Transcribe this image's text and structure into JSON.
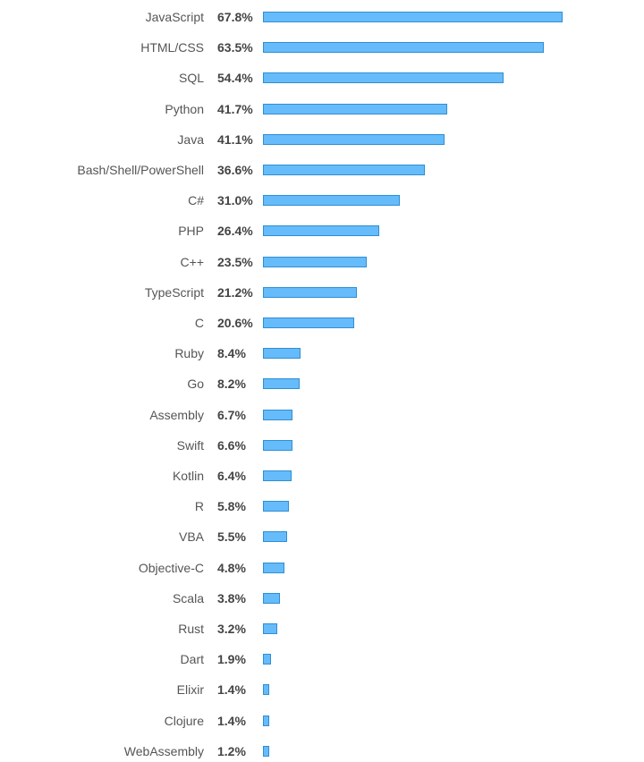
{
  "chart_data": {
    "type": "bar",
    "orientation": "horizontal",
    "title": "",
    "xlabel": "",
    "ylabel": "",
    "unit": "%",
    "grid": false,
    "bar_color": "#66bbfa",
    "bar_border_color": "#2f8fd3",
    "categories": [
      "JavaScript",
      "HTML/CSS",
      "SQL",
      "Python",
      "Java",
      "Bash/Shell/PowerShell",
      "C#",
      "PHP",
      "C++",
      "TypeScript",
      "C",
      "Ruby",
      "Go",
      "Assembly",
      "Swift",
      "Kotlin",
      "R",
      "VBA",
      "Objective-C",
      "Scala",
      "Rust",
      "Dart",
      "Elixir",
      "Clojure",
      "WebAssembly"
    ],
    "values": [
      67.8,
      63.5,
      54.4,
      41.7,
      41.1,
      36.6,
      31.0,
      26.4,
      23.5,
      21.2,
      20.6,
      8.4,
      8.2,
      6.7,
      6.6,
      6.4,
      5.8,
      5.5,
      4.8,
      3.8,
      3.2,
      1.9,
      1.4,
      1.4,
      1.2
    ],
    "value_labels": [
      "67.8%",
      "63.5%",
      "54.4%",
      "41.7%",
      "41.1%",
      "36.6%",
      "31.0%",
      "26.4%",
      "23.5%",
      "21.2%",
      "20.6%",
      "8.4%",
      "8.2%",
      "6.7%",
      "6.6%",
      "6.4%",
      "5.8%",
      "5.5%",
      "4.8%",
      "3.8%",
      "3.2%",
      "1.9%",
      "1.4%",
      "1.4%",
      "1.2%"
    ]
  }
}
